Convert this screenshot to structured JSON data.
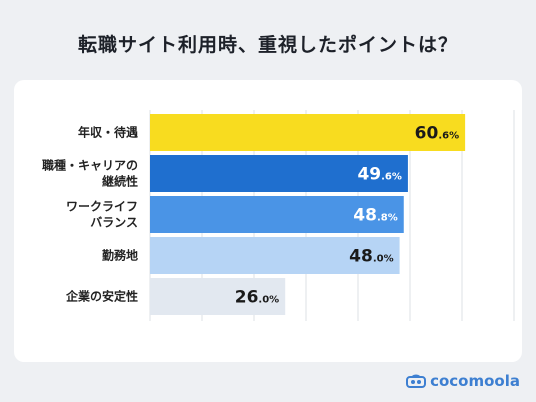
{
  "header": {
    "title": "転職サイト利用時、重視したポイントは？"
  },
  "brand": {
    "name": "cocomoola",
    "icon": "cocomoola-logo-icon",
    "color": "#3d7fd1"
  },
  "chart_data": {
    "type": "bar",
    "orientation": "horizontal",
    "title": "転職サイト利用時、重視したポイントは？",
    "categories": [
      [
        "年収・待遇"
      ],
      [
        "職種・キャリアの",
        "継続性"
      ],
      [
        "ワークライフ",
        "バランス"
      ],
      [
        "勤務地"
      ],
      [
        "企業の安定性"
      ]
    ],
    "values": [
      60.6,
      49.6,
      48.8,
      48.0,
      26.0
    ],
    "labels": [
      {
        "main": "60",
        "dec": ".6%"
      },
      {
        "main": "49",
        "dec": ".6%"
      },
      {
        "main": "48",
        "dec": ".8%"
      },
      {
        "main": "48",
        "dec": ".0%"
      },
      {
        "main": "26",
        "dec": ".0%"
      }
    ],
    "colors": [
      "#f8dc1f",
      "#1f6fcf",
      "#4a94e6",
      "#b6d4f5",
      "#e2e8f0"
    ],
    "label_colors": [
      "#1a1a1a",
      "#ffffff",
      "#ffffff",
      "#1a1a1a",
      "#1a1a1a"
    ],
    "xlim": [
      0,
      70
    ],
    "gridlines": [
      0,
      10,
      20,
      30,
      40,
      50,
      60,
      70
    ],
    "grid": true
  }
}
